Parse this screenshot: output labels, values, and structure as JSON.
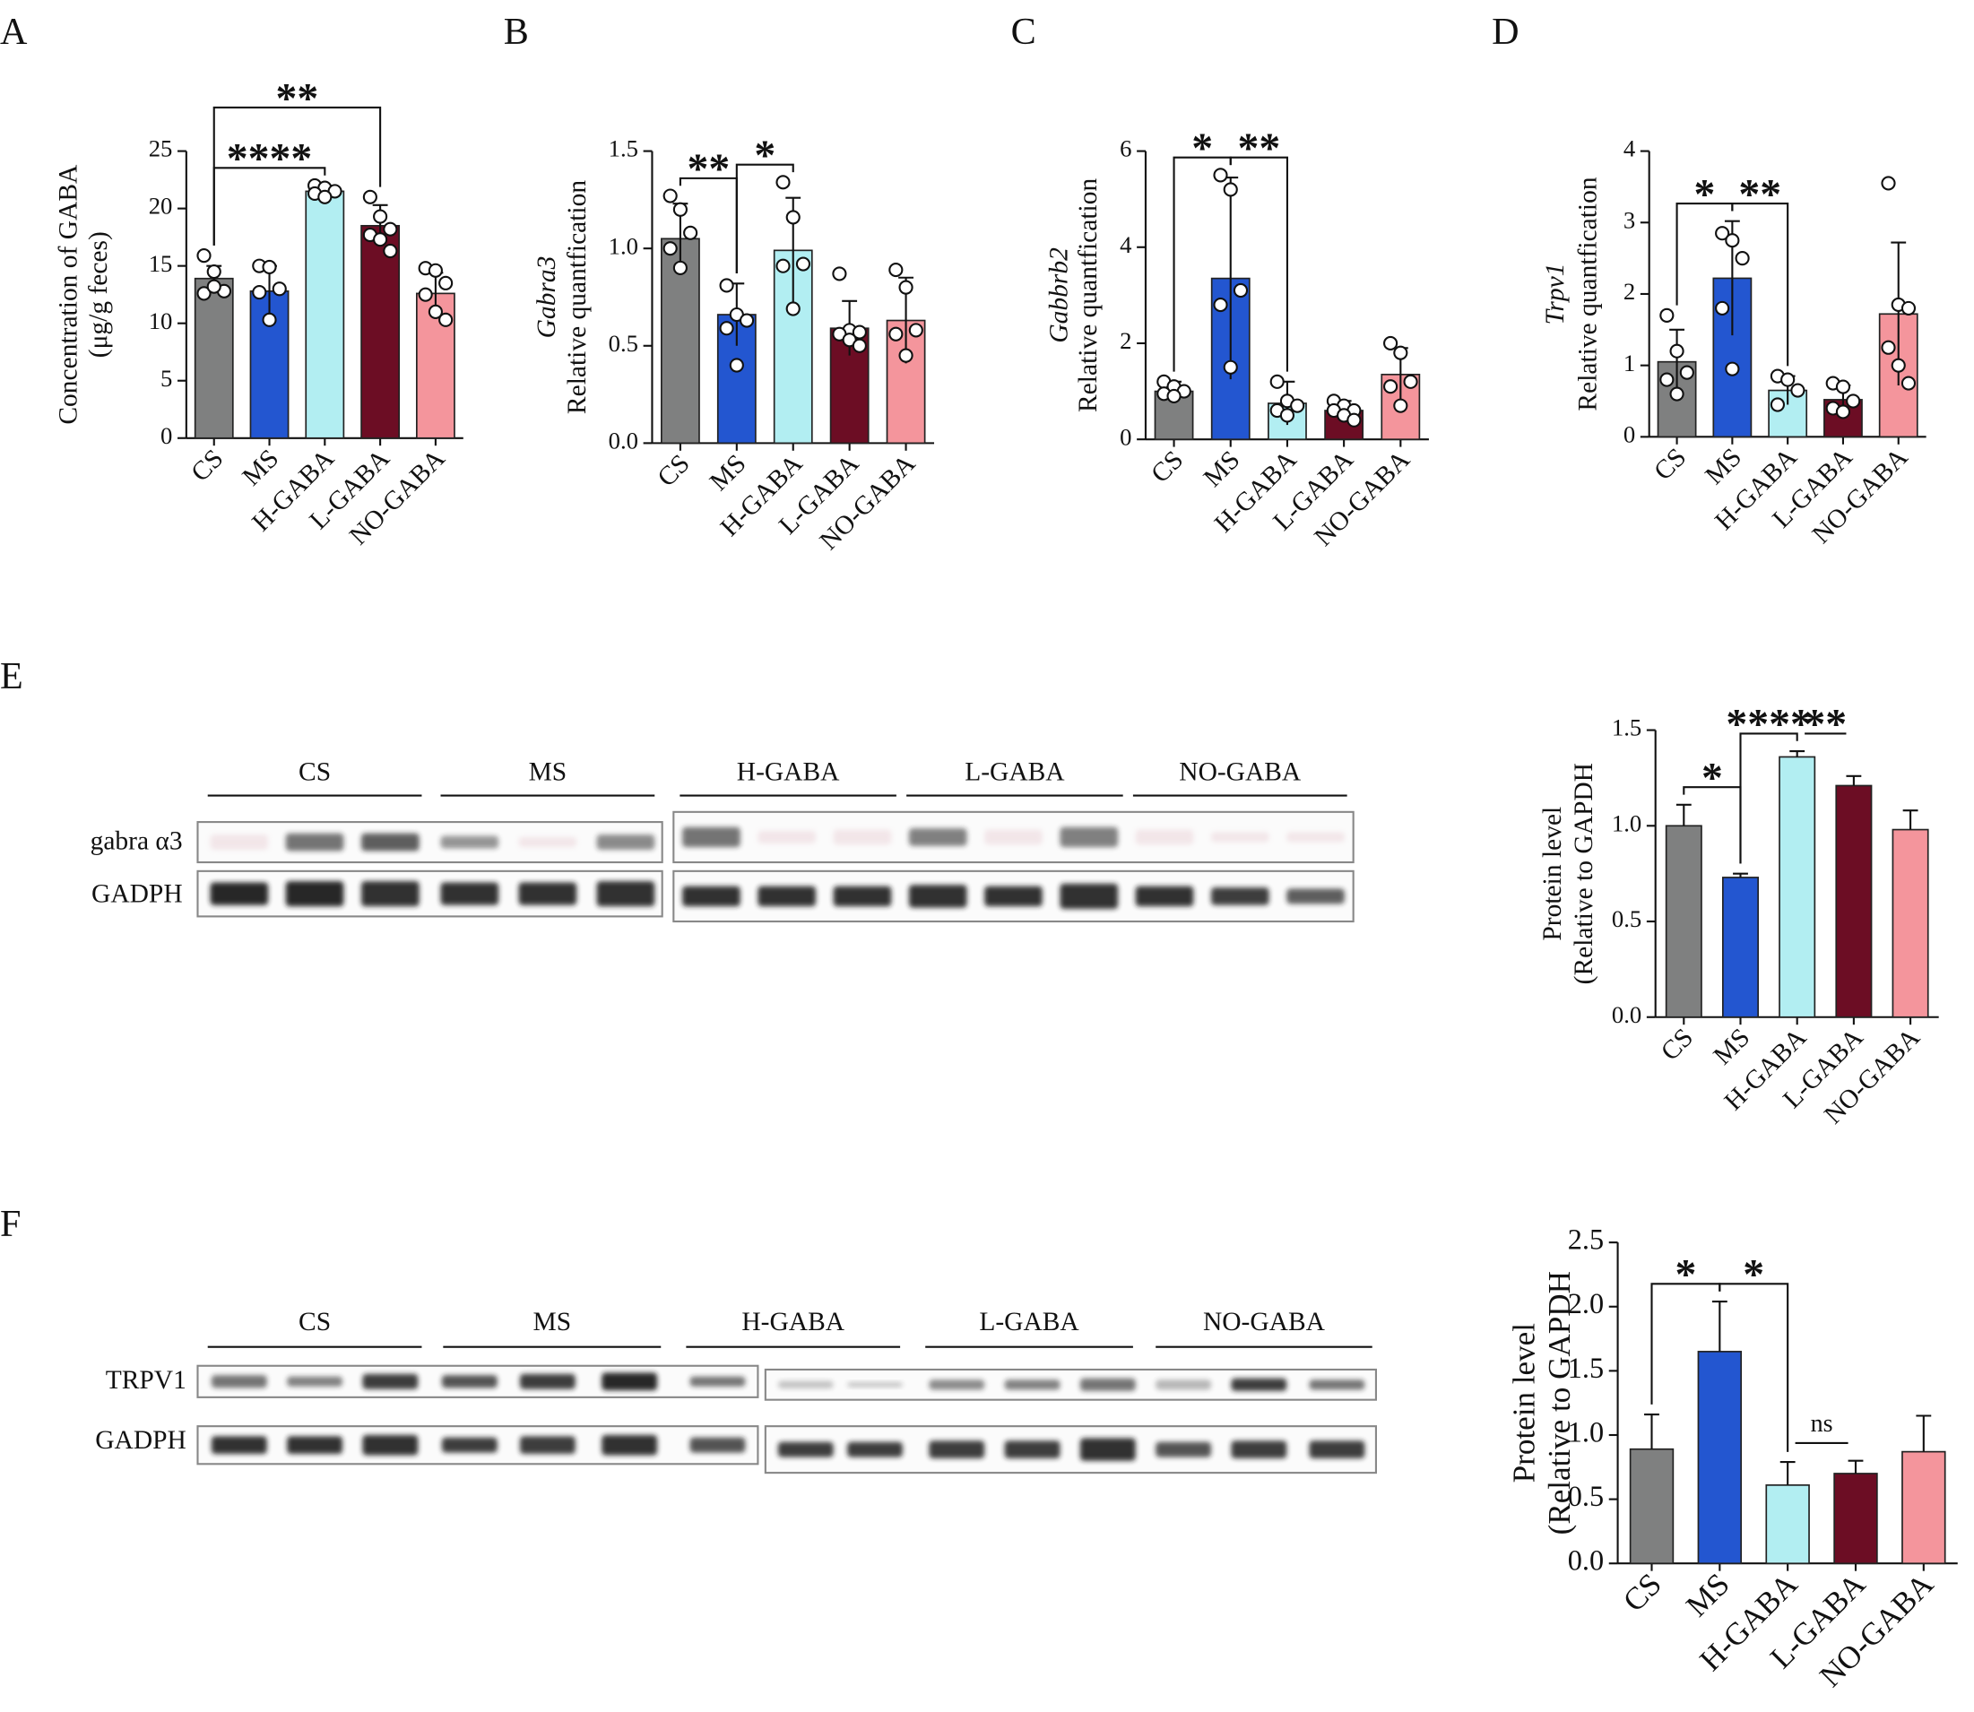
{
  "chart_data": [
    {
      "type": "bar",
      "panel": "A",
      "ylabel": [
        "Concentration of GABA",
        "(μg/g feces)"
      ],
      "ylabel_style": [
        "normal",
        "normal"
      ],
      "categories": [
        "CS",
        "MS",
        "H-GABA",
        "L-GABA",
        "NO-GABA"
      ],
      "colors": [
        "#7f8080",
        "#2356d0",
        "#b2eef2",
        "#6c0d24",
        "#f4959c"
      ],
      "values": [
        13.9,
        12.8,
        21.5,
        18.5,
        12.6
      ],
      "errors": [
        1.1,
        2.2,
        0.5,
        1.8,
        1.8
      ],
      "points": [
        [
          15.9,
          14.5,
          12.8,
          12.6,
          13.2
        ],
        [
          15.0,
          14.9,
          13.0,
          12.7,
          10.3
        ],
        [
          22.0,
          21.8,
          21.5,
          21.3,
          21.0
        ],
        [
          21.0,
          19.3,
          18.2,
          17.7,
          17.3,
          16.3
        ],
        [
          14.8,
          14.6,
          13.5,
          12.5,
          11.0,
          10.3
        ]
      ],
      "ylim": [
        0,
        25
      ],
      "yticks": [
        0,
        5,
        10,
        15,
        20,
        25
      ],
      "annotations": [
        {
          "label": "****",
          "between": [
            "CS",
            "H-GABA"
          ],
          "bracket": true
        },
        {
          "label": "**",
          "between": [
            "CS",
            "L-GABA"
          ],
          "bracket": true
        }
      ]
    },
    {
      "type": "bar",
      "panel": "B",
      "ylabel": [
        "Gabra3",
        "Relative quantfication"
      ],
      "ylabel_style": [
        "italic",
        "normal"
      ],
      "categories": [
        "CS",
        "MS",
        "H-GABA",
        "L-GABA",
        "NO-GABA"
      ],
      "colors": [
        "#7f8080",
        "#2356d0",
        "#b2eef2",
        "#6c0d24",
        "#f4959c"
      ],
      "values": [
        1.05,
        0.66,
        0.99,
        0.59,
        0.63
      ],
      "errors": [
        0.18,
        0.16,
        0.27,
        0.14,
        0.22
      ],
      "points": [
        [
          1.27,
          1.2,
          1.08,
          1.0,
          0.9
        ],
        [
          0.81,
          0.66,
          0.63,
          0.59,
          0.4
        ],
        [
          1.34,
          1.16,
          0.92,
          0.91,
          0.69
        ],
        [
          0.87,
          0.58,
          0.57,
          0.56,
          0.53,
          0.5
        ],
        [
          0.89,
          0.8,
          0.58,
          0.56,
          0.45
        ]
      ],
      "ylim": [
        0,
        1.5
      ],
      "yticks": [
        {
          "value": 0,
          "label": "0.0"
        },
        0.5,
        {
          "value": 1,
          "label": "1.0"
        },
        1.5
      ],
      "annotations": [
        {
          "label": "**",
          "between": [
            "CS",
            "MS"
          ],
          "bracket": true
        },
        {
          "label": "*",
          "between": [
            "MS",
            "H-GABA"
          ],
          "bracket": true
        }
      ]
    },
    {
      "type": "bar",
      "panel": "C",
      "ylabel": [
        "Gabbrb2",
        "Relative quantfication"
      ],
      "ylabel_style": [
        "italic",
        "normal"
      ],
      "categories": [
        "CS",
        "MS",
        "H-GABA",
        "L-GABA",
        "NO-GABA"
      ],
      "colors": [
        "#7f8080",
        "#2356d0",
        "#b2eef2",
        "#6c0d24",
        "#f4959c"
      ],
      "values": [
        1.0,
        3.35,
        0.75,
        0.6,
        1.35
      ],
      "errors": [
        0.2,
        2.1,
        0.45,
        0.2,
        0.55
      ],
      "points": [
        [
          1.2,
          1.1,
          1.0,
          0.95,
          0.9
        ],
        [
          5.5,
          5.2,
          3.1,
          2.8,
          1.5
        ],
        [
          1.2,
          0.8,
          0.7,
          0.6,
          0.5
        ],
        [
          0.8,
          0.7,
          0.6,
          0.6,
          0.5,
          0.4
        ],
        [
          2.0,
          1.8,
          1.2,
          1.1,
          0.7
        ]
      ],
      "ylim": [
        0,
        6
      ],
      "yticks": [
        0,
        2,
        4,
        6
      ],
      "annotations": [
        {
          "label": "*",
          "between": [
            "CS",
            "MS"
          ],
          "bracket": true
        },
        {
          "label": "**",
          "between": [
            "MS",
            "H-GABA"
          ],
          "bracket": true
        }
      ]
    },
    {
      "type": "bar",
      "panel": "D",
      "ylabel": [
        "Trpv1",
        "Relative quantfication"
      ],
      "ylabel_style": [
        "italic",
        "normal"
      ],
      "categories": [
        "CS",
        "MS",
        "H-GABA",
        "L-GABA",
        "NO-GABA"
      ],
      "colors": [
        "#7f8080",
        "#2356d0",
        "#b2eef2",
        "#6c0d24",
        "#f4959c"
      ],
      "values": [
        1.05,
        2.22,
        0.65,
        0.52,
        1.72
      ],
      "errors": [
        0.45,
        0.8,
        0.2,
        0.2,
        1.0
      ],
      "points": [
        [
          1.7,
          1.2,
          0.9,
          0.8,
          0.6
        ],
        [
          2.85,
          2.75,
          2.5,
          1.8,
          0.95
        ],
        [
          0.85,
          0.8,
          0.65,
          0.45
        ],
        [
          0.75,
          0.7,
          0.5,
          0.4,
          0.35
        ],
        [
          3.55,
          1.85,
          1.8,
          1.25,
          1.0,
          0.75
        ]
      ],
      "ylim": [
        0,
        4
      ],
      "yticks": [
        0,
        1,
        2,
        3,
        4
      ],
      "annotations": [
        {
          "label": "*",
          "between": [
            "CS",
            "MS"
          ],
          "bracket": true
        },
        {
          "label": "**",
          "between": [
            "MS",
            "H-GABA"
          ],
          "bracket": true
        }
      ]
    },
    {
      "type": "bar",
      "ylabel": [
        "Protein level",
        "(Relative to GAPDH"
      ],
      "ylabel_style": [
        "normal",
        "normal"
      ],
      "categories": [
        "CS",
        "MS",
        "H-GABA",
        "L-GABA",
        "NO-GABA"
      ],
      "colors": [
        "#7f8080",
        "#2356d0",
        "#b2eef2",
        "#6c0d24",
        "#f4959c"
      ],
      "values": [
        1.0,
        0.73,
        1.36,
        1.21,
        0.98
      ],
      "errors": [
        0.11,
        0.02,
        0.03,
        0.05,
        0.1
      ],
      "ylim": [
        0,
        1.5
      ],
      "yticks": [
        {
          "value": 0,
          "label": "0.0"
        },
        0.5,
        {
          "value": 1,
          "label": "1.0"
        },
        1.5
      ],
      "annotations": [
        {
          "label": "*",
          "between": [
            "CS",
            "MS"
          ],
          "bracket": true
        },
        {
          "label": "****",
          "between": [
            "MS",
            "H-GABA"
          ],
          "bracket": true
        },
        {
          "label": "**",
          "between": [
            "H-GABA",
            "L-GABA"
          ],
          "bracket": false
        }
      ]
    },
    {
      "type": "bar",
      "ylabel": [
        "Protein level",
        "(Relative to GAPDH"
      ],
      "ylabel_style": [
        "normal",
        "normal"
      ],
      "categories": [
        "CS",
        "MS",
        "H-GABA",
        "L-GABA",
        "NO-GABA"
      ],
      "colors": [
        "#7f8080",
        "#2356d0",
        "#b2eef2",
        "#6c0d24",
        "#f4959c"
      ],
      "values": [
        0.89,
        1.65,
        0.61,
        0.7,
        0.87
      ],
      "errors": [
        0.27,
        0.39,
        0.18,
        0.1,
        0.28
      ],
      "ylim": [
        0,
        2.5
      ],
      "yticks": [
        {
          "value": 0,
          "label": "0.0"
        },
        0.5,
        {
          "value": 1,
          "label": "1.0"
        },
        1.5,
        {
          "value": 2,
          "label": "2.0"
        },
        2.5
      ],
      "annotations": [
        {
          "label": "*",
          "between": [
            "CS",
            "MS"
          ],
          "bracket": true
        },
        {
          "label": "*",
          "between": [
            "MS",
            "H-GABA"
          ],
          "bracket": true
        },
        {
          "label": "ns",
          "between": [
            "H-GABA",
            "L-GABA"
          ],
          "bracket": false
        }
      ]
    }
  ],
  "blots": [
    {
      "panel": "E",
      "groups": [
        "CS",
        "MS",
        "H-GABA",
        "L-GABA",
        "NO-GABA"
      ],
      "rows": [
        "gabra α3",
        "GADPH"
      ]
    },
    {
      "panel": "F",
      "groups": [
        "CS",
        "MS",
        "H-GABA",
        "L-GABA",
        "NO-GABA"
      ],
      "rows": [
        "TRPV1",
        "GADPH"
      ]
    }
  ]
}
